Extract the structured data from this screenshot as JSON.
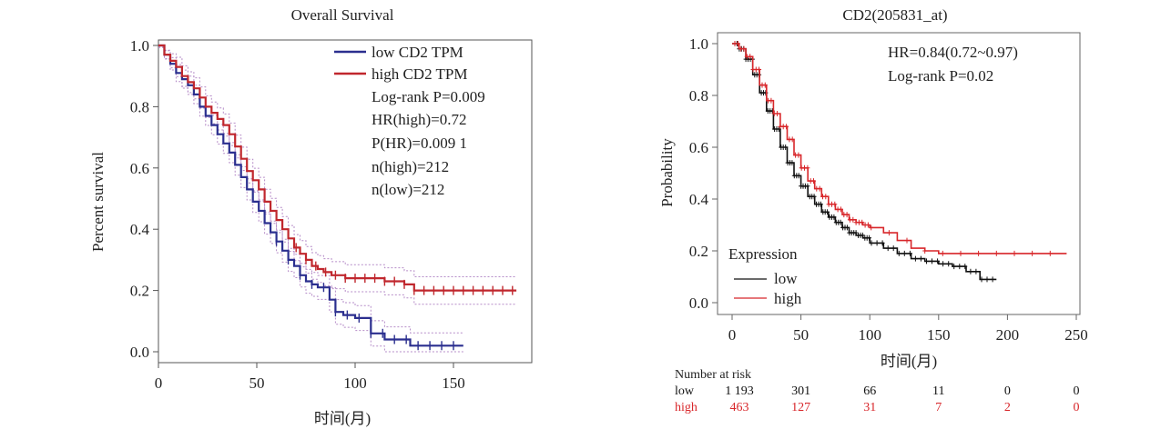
{
  "chart_data": [
    {
      "type": "line",
      "title": "Overall Survival",
      "xlabel": "时间(月)",
      "ylabel": "Percent survival",
      "xlim": [
        0,
        185
      ],
      "ylim": [
        0,
        1
      ],
      "xticks": [
        "0",
        "50",
        "100",
        "150"
      ],
      "yticks": [
        "0.0",
        "0.2",
        "0.4",
        "0.6",
        "0.8",
        "1.0"
      ],
      "grid": false,
      "legend_position": "top-right",
      "colors": {
        "low": "#2b2f8f",
        "high": "#c0272d",
        "ci": "#b68cc8"
      },
      "series": [
        {
          "name": "low CD2 TPM",
          "x": [
            0,
            3,
            6,
            9,
            12,
            15,
            18,
            21,
            24,
            27,
            30,
            33,
            36,
            39,
            42,
            45,
            48,
            51,
            54,
            57,
            60,
            63,
            66,
            69,
            72,
            75,
            78,
            81,
            84,
            87,
            90,
            94,
            100,
            108,
            115,
            120,
            128,
            140,
            155
          ],
          "y": [
            1.0,
            0.97,
            0.94,
            0.91,
            0.89,
            0.87,
            0.84,
            0.8,
            0.77,
            0.74,
            0.71,
            0.68,
            0.65,
            0.61,
            0.57,
            0.53,
            0.49,
            0.46,
            0.42,
            0.39,
            0.36,
            0.33,
            0.3,
            0.28,
            0.25,
            0.23,
            0.22,
            0.21,
            0.21,
            0.17,
            0.13,
            0.12,
            0.11,
            0.06,
            0.04,
            0.04,
            0.02,
            0.02,
            0.02
          ]
        },
        {
          "name": "high CD2 TPM",
          "x": [
            0,
            3,
            6,
            9,
            12,
            15,
            18,
            21,
            24,
            27,
            30,
            33,
            36,
            39,
            42,
            45,
            48,
            51,
            54,
            57,
            60,
            63,
            66,
            69,
            72,
            75,
            78,
            81,
            84,
            88,
            95,
            105,
            115,
            125,
            130,
            140,
            160,
            175,
            182
          ],
          "y": [
            1.0,
            0.97,
            0.95,
            0.93,
            0.9,
            0.88,
            0.86,
            0.83,
            0.8,
            0.78,
            0.76,
            0.74,
            0.71,
            0.67,
            0.63,
            0.59,
            0.56,
            0.53,
            0.49,
            0.46,
            0.43,
            0.4,
            0.37,
            0.34,
            0.32,
            0.3,
            0.28,
            0.27,
            0.26,
            0.25,
            0.24,
            0.24,
            0.23,
            0.22,
            0.2,
            0.2,
            0.2,
            0.2,
            0.2
          ]
        }
      ],
      "annotations": [
        "Log-rank P=0.009",
        "HR(high)=0.72",
        "P(HR)=0.009 1",
        "n(high)=212",
        "n(low)=212"
      ]
    },
    {
      "type": "line",
      "title": "CD2(205831_at)",
      "xlabel": "时间(月)",
      "ylabel": "Probability",
      "xlim": [
        0,
        250
      ],
      "ylim": [
        0,
        1
      ],
      "xticks": [
        "0",
        "50",
        "100",
        "150",
        "200",
        "250"
      ],
      "yticks": [
        "0.0",
        "0.2",
        "0.4",
        "0.6",
        "0.8",
        "1.0"
      ],
      "grid": false,
      "legend_title": "Expression",
      "legend_position": "bottom-left",
      "colors": {
        "low": "#111111",
        "high": "#d8262a"
      },
      "series": [
        {
          "name": "low",
          "x": [
            0,
            5,
            10,
            15,
            20,
            25,
            30,
            35,
            40,
            45,
            50,
            55,
            60,
            65,
            70,
            75,
            80,
            85,
            90,
            95,
            100,
            110,
            120,
            130,
            140,
            150,
            160,
            170,
            180,
            192
          ],
          "y": [
            1.0,
            0.98,
            0.94,
            0.88,
            0.81,
            0.74,
            0.67,
            0.6,
            0.54,
            0.49,
            0.45,
            0.41,
            0.38,
            0.35,
            0.33,
            0.31,
            0.29,
            0.27,
            0.26,
            0.25,
            0.23,
            0.21,
            0.19,
            0.17,
            0.16,
            0.15,
            0.14,
            0.12,
            0.09,
            0.09
          ]
        },
        {
          "name": "high",
          "x": [
            0,
            5,
            10,
            15,
            20,
            25,
            30,
            35,
            40,
            45,
            50,
            55,
            60,
            65,
            70,
            75,
            80,
            85,
            90,
            95,
            100,
            110,
            120,
            130,
            140,
            150,
            170,
            200,
            243
          ],
          "y": [
            1.0,
            0.98,
            0.95,
            0.9,
            0.84,
            0.78,
            0.73,
            0.68,
            0.63,
            0.57,
            0.52,
            0.47,
            0.44,
            0.41,
            0.38,
            0.36,
            0.34,
            0.32,
            0.31,
            0.3,
            0.29,
            0.27,
            0.24,
            0.21,
            0.2,
            0.19,
            0.19,
            0.19,
            0.19
          ]
        }
      ],
      "annotations": [
        "HR=0.84(0.72~0.97)",
        "Log-rank P=0.02"
      ],
      "risk_table": {
        "title": "Number at risk",
        "times": [
          0,
          50,
          100,
          150,
          200,
          250
        ],
        "rows": [
          {
            "name": "low",
            "values": [
              "1 193",
              "301",
              "66",
              "11",
              "0",
              "0"
            ]
          },
          {
            "name": "high",
            "values": [
              "463",
              "127",
              "31",
              "7",
              "2",
              "0"
            ]
          }
        ]
      }
    }
  ]
}
